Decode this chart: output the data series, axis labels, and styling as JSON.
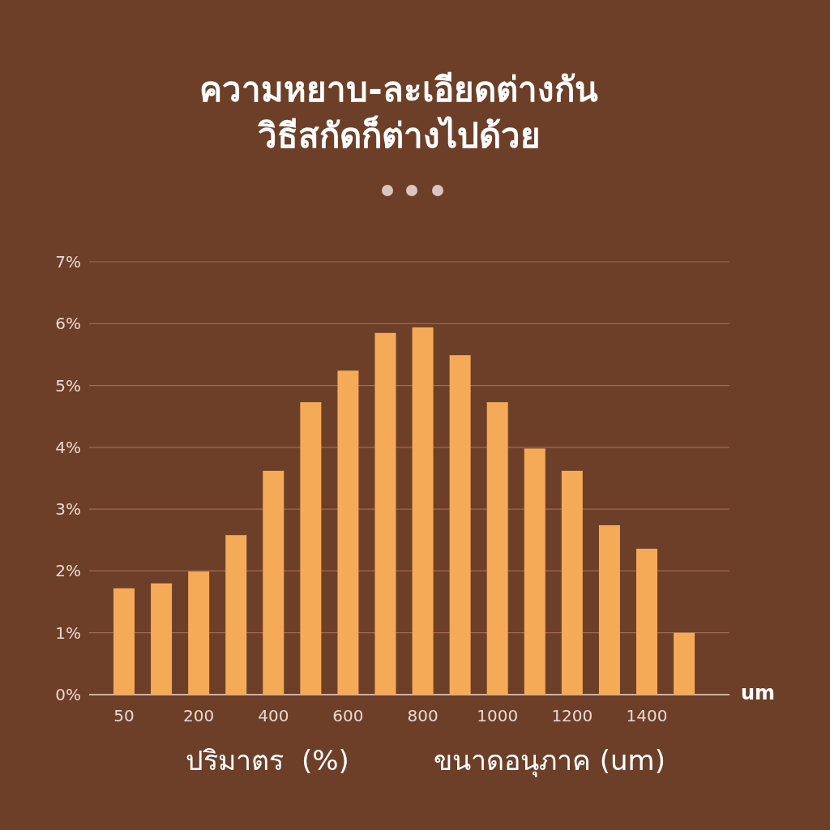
{
  "chart_data": {
    "type": "bar",
    "title": "ความหยาบ-ละเอียดต่างกัน\nวิธีสกัดก็ต่างไปด้วย",
    "categories": [
      "50",
      null,
      "200",
      null,
      "400",
      null,
      "600",
      null,
      "800",
      null,
      "1000",
      null,
      "1200",
      null,
      "1400",
      null
    ],
    "values": [
      1.72,
      1.8,
      1.99,
      2.58,
      3.62,
      4.73,
      5.24,
      5.85,
      5.94,
      5.49,
      4.73,
      3.98,
      3.62,
      2.74,
      2.36,
      1.0
    ],
    "color": "#f5aa58",
    "ylim": [
      0,
      7
    ],
    "yticks": [
      {
        "value": 0,
        "label": "0%"
      },
      {
        "value": 1,
        "label": "1%"
      },
      {
        "value": 2,
        "label": "2%"
      },
      {
        "value": 3,
        "label": "3%"
      },
      {
        "value": 4,
        "label": "4%"
      },
      {
        "value": 5,
        "label": "5%"
      },
      {
        "value": 6,
        "label": "6%"
      },
      {
        "value": 7,
        "label": "7%"
      }
    ],
    "xlabel": "um",
    "annotations": [
      "ปริมาตร  (%)",
      "ขนาดอนุภาค (um)"
    ],
    "grid": "y"
  }
}
